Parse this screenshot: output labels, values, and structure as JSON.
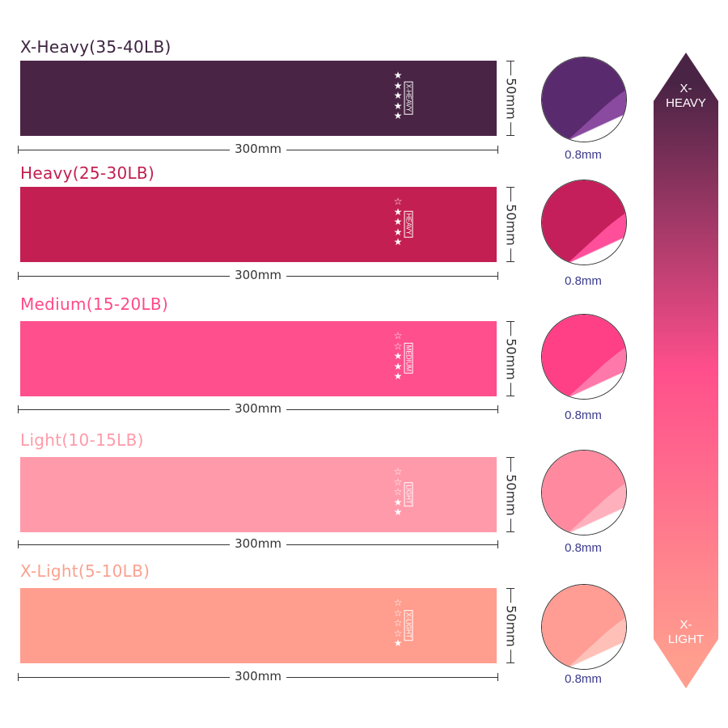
{
  "bands": [
    {
      "title": "X-Heavy(35-40LB)",
      "tag": "X-HEAVY",
      "stars_filled": 5,
      "stars_total": 5,
      "length": "300mm",
      "width": "50mm",
      "thickness": "0.8mm",
      "color": "#4a2445",
      "title_color": "#3d2340",
      "circle_dark": "#5a2a6e",
      "circle_light": "#8a4aa0"
    },
    {
      "title": "Heavy(25-30LB)",
      "tag": "HEAVY",
      "stars_filled": 4,
      "stars_total": 5,
      "length": "300mm",
      "width": "50mm",
      "thickness": "0.8mm",
      "color": "#c41f52",
      "title_color": "#c22050",
      "circle_dark": "#c41f5a",
      "circle_light": "#ff4f9a"
    },
    {
      "title": "Medium(15-20LB)",
      "tag": "MEDIUM",
      "stars_filled": 3,
      "stars_total": 5,
      "length": "300mm",
      "width": "50mm",
      "thickness": "0.8mm",
      "color": "#ff4f8c",
      "title_color": "#ff4a86",
      "circle_dark": "#ff3f86",
      "circle_light": "#ff78aa"
    },
    {
      "title": "Light(10-15LB)",
      "tag": "LIGHT",
      "stars_filled": 2,
      "stars_total": 5,
      "length": "300mm",
      "width": "50mm",
      "thickness": "0.8mm",
      "color": "#ff9aab",
      "title_color": "#ff9aa8",
      "circle_dark": "#ff8a9f",
      "circle_light": "#ffb0bd"
    },
    {
      "title": "X-Light(5-10LB)",
      "tag": "X-LIGHT",
      "stars_filled": 1,
      "stars_total": 5,
      "length": "300mm",
      "width": "50mm",
      "thickness": "0.8mm",
      "color": "#ff9d8e",
      "title_color": "#f9a290",
      "circle_dark": "#ff9c94",
      "circle_light": "#ffc0b8"
    }
  ],
  "scale": {
    "top_label": "X-\nHEAVY",
    "bottom_label": "X-\nLIGHT",
    "top_color": "#4a2445",
    "mid_color": "#ff4f8c",
    "bottom_color": "#ff9d8e"
  }
}
